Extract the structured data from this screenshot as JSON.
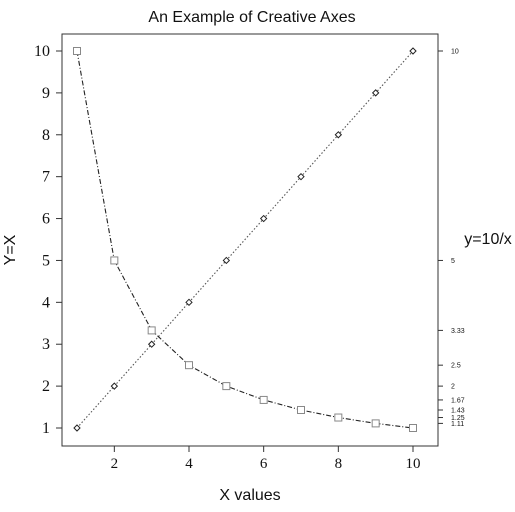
{
  "chart_data": {
    "type": "line",
    "title": "An Example of Creative Axes",
    "xlabel": "X values",
    "ylabel": "Y=X",
    "ylabel_right": "y=10/x",
    "xlim": [
      1,
      10
    ],
    "ylim": [
      1,
      10
    ],
    "ylim_right": [
      1,
      10
    ],
    "grid": false,
    "x_ticks": [
      "2",
      "4",
      "6",
      "8",
      "10"
    ],
    "y_ticks": [
      "1",
      "2",
      "3",
      "4",
      "5",
      "6",
      "7",
      "8",
      "9",
      "10"
    ],
    "y_right_ticks": [
      "1.11",
      "1.25",
      "1.43",
      "1.67",
      "2",
      "2.5",
      "3.33",
      "5",
      "10"
    ],
    "x": [
      1,
      2,
      3,
      4,
      5,
      6,
      7,
      8,
      9,
      10
    ],
    "series": [
      {
        "values": [
          1,
          2,
          3,
          4,
          5,
          6,
          7,
          8,
          9,
          10
        ],
        "marker": "diamond",
        "axis": "left",
        "line_color": "#555555",
        "line_style": "dotted"
      },
      {
        "values": [
          10,
          5,
          3.33,
          2.5,
          2,
          1.67,
          1.43,
          1.25,
          1.11,
          1
        ],
        "marker": "square",
        "axis": "right",
        "line_color": "#222222",
        "marker_color": "#888888",
        "line_style": "dashed"
      }
    ]
  }
}
